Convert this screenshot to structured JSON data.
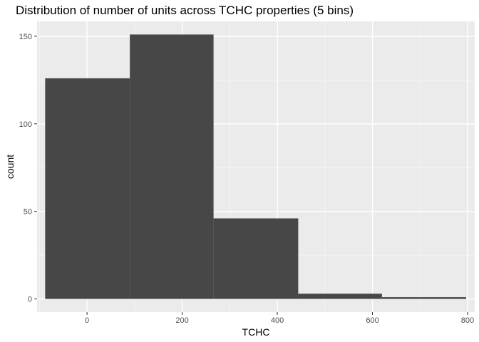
{
  "chart_data": {
    "type": "bar",
    "title": "Distribution of number of units across TCHC properties (5 bins)",
    "xlabel": "TCHC",
    "ylabel": "count",
    "bins": [
      {
        "x_start": -88,
        "x_end": 90,
        "count": 126
      },
      {
        "x_start": 90,
        "x_end": 266,
        "count": 151
      },
      {
        "x_start": 266,
        "x_end": 444,
        "count": 46
      },
      {
        "x_start": 444,
        "x_end": 620,
        "count": 3
      },
      {
        "x_start": 620,
        "x_end": 797,
        "count": 1
      }
    ],
    "xlim": [
      -105,
      815
    ],
    "ylim": [
      -7.5,
      158.5
    ],
    "x_major_ticks": [
      0,
      200,
      400,
      600,
      800
    ],
    "x_minor_ticks": [
      -100,
      100,
      300,
      500,
      700
    ],
    "y_major_ticks": [
      0,
      50,
      100,
      150
    ],
    "y_minor_ticks": [
      25,
      75,
      125
    ],
    "x_tick_labels": [
      "0",
      "200",
      "400",
      "600",
      "800"
    ],
    "y_tick_labels": [
      "0",
      "50",
      "100",
      "150"
    ],
    "grid": true,
    "legend": "none",
    "colors": {
      "bar": "#474747",
      "panel": "#ebebeb",
      "grid_major": "#ffffff",
      "grid_minor": "#f5f5f5",
      "tick_label": "#4d4d4d"
    }
  }
}
